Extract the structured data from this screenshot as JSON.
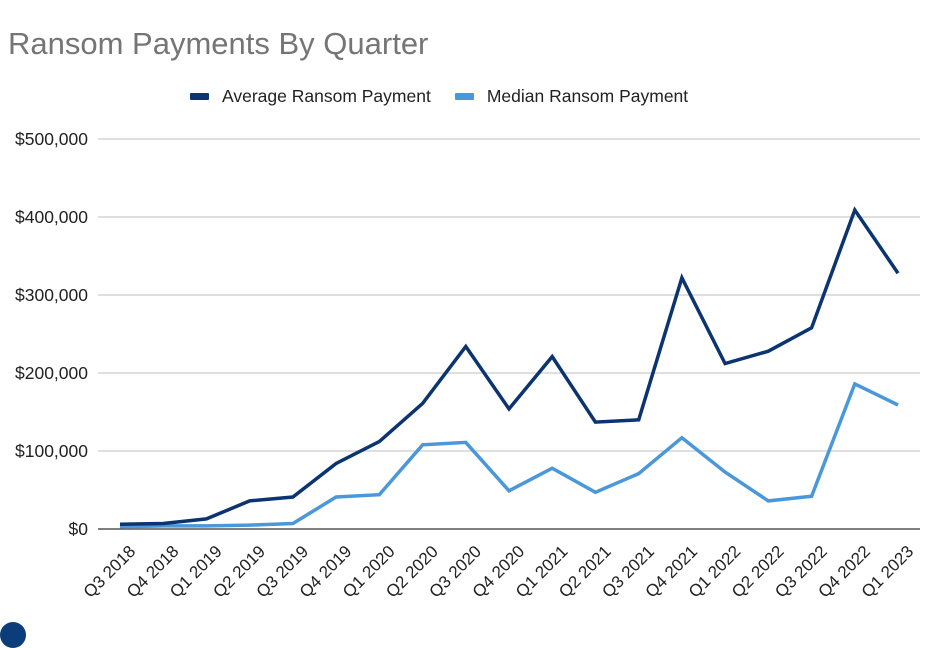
{
  "chart_data": {
    "type": "line",
    "title": "Ransom Payments By Quarter",
    "xlabel": "",
    "ylabel": "",
    "ylim": [
      0,
      500000
    ],
    "yticks": [
      0,
      100000,
      200000,
      300000,
      400000,
      500000
    ],
    "ytick_labels": [
      "$0",
      "$100,000",
      "$200,000",
      "$300,000",
      "$400,000",
      "$500,000"
    ],
    "grid": true,
    "legend_position": "top",
    "categories": [
      "Q3 2018",
      "Q4 2018",
      "Q1 2019",
      "Q2 2019",
      "Q3 2019",
      "Q4 2019",
      "Q1 2020",
      "Q2 2020",
      "Q3 2020",
      "Q4 2020",
      "Q1 2021",
      "Q2 2021",
      "Q3 2021",
      "Q4 2021",
      "Q1 2022",
      "Q2 2022",
      "Q3 2022",
      "Q4 2022",
      "Q1 2023"
    ],
    "series": [
      {
        "name": "Average Ransom Payment",
        "color": "#0b3470",
        "values": [
          6000,
          7000,
          13000,
          36000,
          41000,
          84000,
          112000,
          161000,
          234000,
          154000,
          221000,
          137000,
          140000,
          322000,
          212000,
          228000,
          258000,
          409000,
          328000
        ]
      },
      {
        "name": "Median Ransom Payment",
        "color": "#4a97d9",
        "values": [
          3000,
          4000,
          4000,
          5000,
          7000,
          41000,
          44000,
          108000,
          111000,
          49000,
          78000,
          47000,
          71000,
          117000,
          73000,
          36000,
          42000,
          186000,
          159000
        ]
      }
    ]
  }
}
